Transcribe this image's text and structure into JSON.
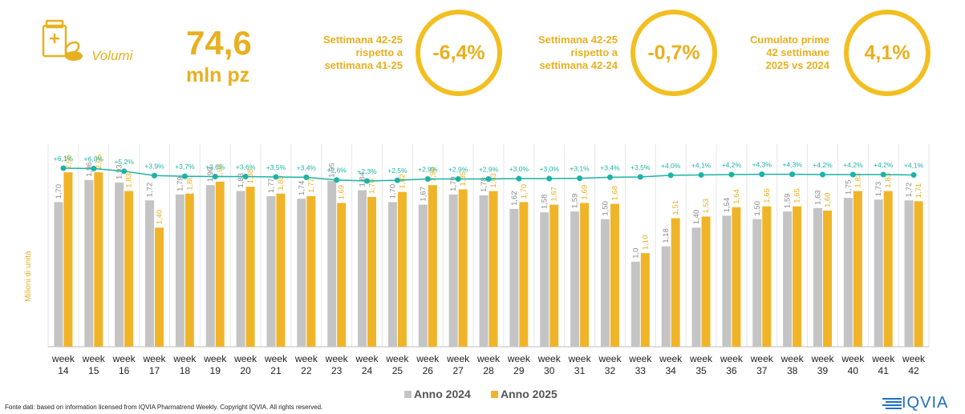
{
  "kpi": {
    "icon": "pill-box-icon",
    "label": "Volumi",
    "value": "74,6",
    "unit": "mln pz"
  },
  "comparisons": [
    {
      "lines": [
        "Settimana 42-25",
        "rispetto a",
        "settimana 41-25"
      ],
      "value": "-6,4%"
    },
    {
      "lines": [
        "Settimana 42-25",
        "rispetto a",
        "settimana 42-24"
      ],
      "value": "-0,7%"
    },
    {
      "lines": [
        "Cumulato prime",
        "42 settimane",
        "2025 vs 2024"
      ],
      "value": "4,1%"
    }
  ],
  "colors": {
    "accent": "#f2bf22",
    "series_2024": "#c4c4c4",
    "series_2025": "#f0b429",
    "growth_line": "#1bb3a6"
  },
  "chart_data": {
    "type": "bar",
    "categories": [
      "week 14",
      "week 15",
      "week 16",
      "week 17",
      "week 18",
      "week 19",
      "week 20",
      "week 21",
      "week 22",
      "week 23",
      "week 24",
      "week 25",
      "week 26",
      "week 27",
      "week 28",
      "week 29",
      "week 30",
      "week 31",
      "week 32",
      "week 33",
      "week 34",
      "week 35",
      "week 36",
      "week 37",
      "week 38",
      "week 39",
      "week 40",
      "week 41",
      "week 42"
    ],
    "ylabel": "Milioni di unità",
    "ylim": [
      0,
      2.4
    ],
    "series": [
      {
        "name": "Anno 2024",
        "value_labels": [
          "1,70",
          "1,96",
          "1,93",
          "1,72",
          "1,79",
          "1,90",
          "1,83",
          "1,77",
          "1,74",
          "1,95",
          "1,84",
          "1,70",
          "1,67",
          "1,79",
          "1,78",
          "1,62",
          "1,58",
          "1,59",
          "1,50",
          "1,0",
          "1,18",
          "1,40",
          "1,54",
          "1,50",
          "1,59",
          "1,63",
          "1,75",
          "1,73",
          "1,72"
        ],
        "values": [
          1.7,
          1.96,
          1.93,
          1.72,
          1.79,
          1.9,
          1.83,
          1.77,
          1.74,
          1.95,
          1.84,
          1.7,
          1.67,
          1.79,
          1.78,
          1.62,
          1.58,
          1.59,
          1.5,
          1.0,
          1.18,
          1.4,
          1.54,
          1.5,
          1.59,
          1.63,
          1.75,
          1.73,
          1.72
        ]
      },
      {
        "name": "Anno 2025",
        "value_labels": [
          "2,05",
          "2,05",
          "1,83",
          "1,40",
          "1,80",
          "1,94",
          "1,88",
          "1,80",
          "1,77",
          "1,69",
          "1,76",
          "1,82",
          "1,90",
          "1,85",
          "1,83",
          "1,70",
          "1,67",
          "1,69",
          "1,68",
          "1,10",
          "1,51",
          "1,53",
          "1,64",
          "1,65",
          "1,65",
          "1,60",
          "1,83",
          "1,83",
          "1,71"
        ],
        "values": [
          2.05,
          2.05,
          1.83,
          1.4,
          1.8,
          1.94,
          1.88,
          1.8,
          1.77,
          1.69,
          1.76,
          1.82,
          1.9,
          1.85,
          1.83,
          1.7,
          1.67,
          1.69,
          1.68,
          1.1,
          1.51,
          1.53,
          1.64,
          1.65,
          1.65,
          1.6,
          1.83,
          1.83,
          1.71
        ]
      }
    ],
    "cumulative_growth": {
      "labels": [
        "+6,1%",
        "+6,0%",
        "+5,2%",
        "+3,9%",
        "+3,7%",
        "+3,6%",
        "+3,6%",
        "+3,5%",
        "+3,4%",
        "+2,6%",
        "+2,3%",
        "+2,5%",
        "+2,9%",
        "+2,9%",
        "+2,9%",
        "+3,0%",
        "+3,0%",
        "+3,1%",
        "+3,4%",
        "+3,5%",
        "+4,0%",
        "+4,1%",
        "+4,2%",
        "+4,3%",
        "+4,3%",
        "+4,2%",
        "+4,2%",
        "+4,2%",
        "+4,1%"
      ],
      "values": [
        6.1,
        6.0,
        5.2,
        3.9,
        3.7,
        3.6,
        3.6,
        3.5,
        3.4,
        2.6,
        2.3,
        2.5,
        2.9,
        2.9,
        2.9,
        3.0,
        3.0,
        3.1,
        3.4,
        3.5,
        4.0,
        4.1,
        4.2,
        4.3,
        4.3,
        4.2,
        4.2,
        4.2,
        4.1
      ]
    },
    "legend": {
      "placement": "bottom-center",
      "entries": [
        "Anno 2024",
        "Anno 2025"
      ]
    }
  },
  "footer": {
    "source": "Fonte dati: based on information licensed from IQVIA Pharmatrend Weekly. Copyright IQVIA. All rights reserved.",
    "logo_text": "IQVIA"
  }
}
